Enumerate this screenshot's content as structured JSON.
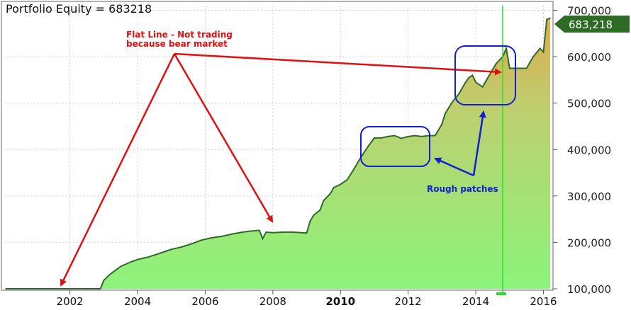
{
  "chart_data": {
    "type": "area",
    "title": "Portfolio Equity = 683218",
    "xlabel": "",
    "ylabel": "",
    "xlim": [
      2000.1,
      2016.2
    ],
    "ylim": [
      100000,
      710000
    ],
    "grid": true,
    "x_ticks": [
      "2002",
      "2004",
      "2006",
      "2008",
      "2010",
      "2012",
      "2014",
      "2016"
    ],
    "y_ticks": [
      "100,000",
      "200,000",
      "300,000",
      "400,000",
      "500,000",
      "600,000",
      "700,000"
    ],
    "last_value_label": "683,218",
    "series": [
      {
        "x": [
          2000.1,
          2002.9,
          2003.0,
          2003.2,
          2003.5,
          2003.8,
          2004.0,
          2004.3,
          2004.6,
          2004.8,
          2005.0,
          2005.3,
          2005.6,
          2005.9,
          2006.2,
          2006.5,
          2006.8,
          2007.1,
          2007.3,
          2007.6,
          2007.7,
          2007.8,
          2008.0,
          2008.3,
          2008.6,
          2009.0,
          2009.1,
          2009.2,
          2009.4,
          2009.5,
          2009.7,
          2009.8,
          2010.0,
          2010.2,
          2010.4,
          2010.6,
          2010.8,
          2011.0,
          2011.2,
          2011.4,
          2011.6,
          2011.8,
          2012.0,
          2012.2,
          2012.4,
          2012.6,
          2012.8,
          2013.0,
          2013.1,
          2013.3,
          2013.5,
          2013.7,
          2013.8,
          2013.9,
          2014.0,
          2014.2,
          2014.4,
          2014.6,
          2014.8,
          2014.9,
          2015.0,
          2015.2,
          2015.5,
          2015.7,
          2015.9,
          2016.0,
          2016.1,
          2016.2
        ],
        "y": [
          100000,
          100000,
          118000,
          132000,
          148000,
          158000,
          163000,
          168000,
          175000,
          180000,
          185000,
          190000,
          197000,
          205000,
          210000,
          213000,
          218000,
          222000,
          224000,
          226000,
          208000,
          222000,
          221000,
          222000,
          222000,
          220000,
          245000,
          258000,
          270000,
          290000,
          305000,
          318000,
          325000,
          335000,
          358000,
          383000,
          405000,
          425000,
          425000,
          428000,
          430000,
          424000,
          428000,
          430000,
          428000,
          430000,
          430000,
          455000,
          478000,
          502000,
          520000,
          545000,
          555000,
          560000,
          545000,
          535000,
          560000,
          585000,
          600000,
          618000,
          575000,
          575000,
          575000,
          600000,
          618000,
          610000,
          680000,
          683218
        ]
      }
    ],
    "annotations": {
      "flat_line_line1": "Flat Line - Not trading",
      "flat_line_line2": "because bear market",
      "rough_patches": "Rough patches"
    },
    "colors": {
      "fill_top": "#e0aa50",
      "fill_bottom": "#8cf47a",
      "line": "#2e6b24",
      "annotation_red": "#e01010",
      "annotation_blue": "#1020d0",
      "marker_green": "#28e028",
      "value_badge": "#2e6b24"
    }
  }
}
